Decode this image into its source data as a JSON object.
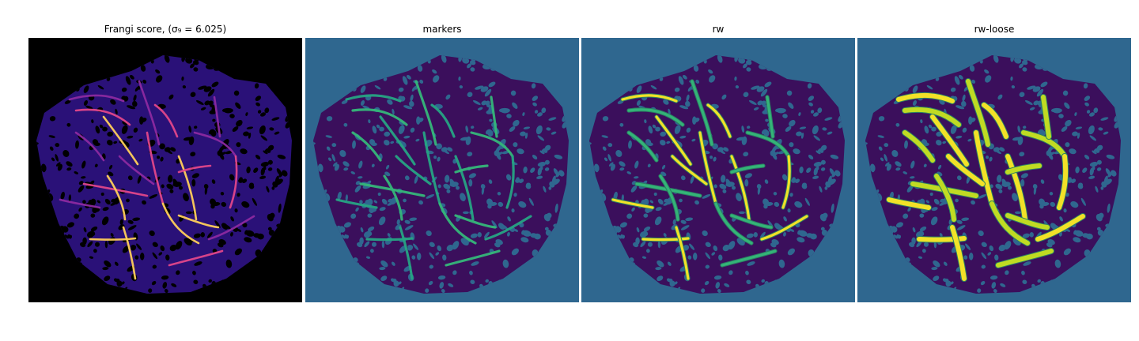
{
  "figure": {
    "panels": [
      {
        "id": "frangi",
        "title": "Frangi score, (σ₉ = 6.025)",
        "background": "#000000",
        "tissue": "#2a1178",
        "pores": "#000000",
        "vessel_colors": [
          "#8c2aa0",
          "#e0478a",
          "#ffcf5a"
        ]
      },
      {
        "id": "markers",
        "title": "markers",
        "background": "#2f678f",
        "tissue": "#3b0f5c",
        "pores": "#2f678f",
        "vessel_colors": [
          "#26a483",
          "#35b779"
        ]
      },
      {
        "id": "rw",
        "title": "rw",
        "background": "#2f678f",
        "tissue": "#3b0f5c",
        "pores": "#2f678f",
        "vessel_colors": [
          "#fde725",
          "#35b779"
        ]
      },
      {
        "id": "rw-loose",
        "title": "rw-loose",
        "background": "#2f678f",
        "tissue": "#3b0f5c",
        "pores": "#2f678f",
        "vessel_colors": [
          "#fde725",
          "#c8e020"
        ]
      }
    ]
  }
}
